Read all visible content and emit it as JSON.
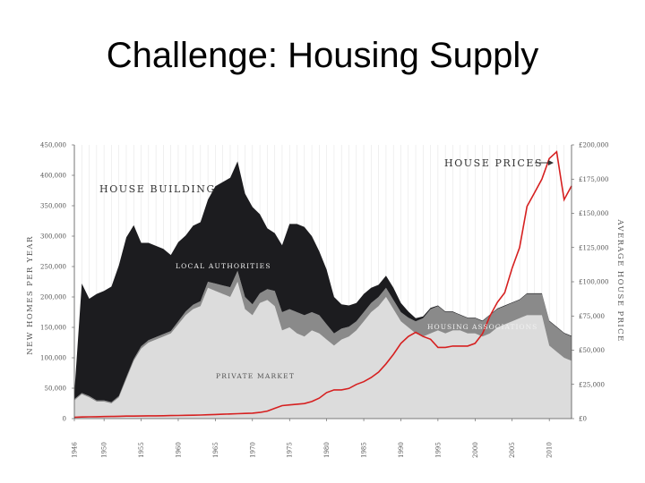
{
  "slide": {
    "title": "Challenge: Housing Supply"
  },
  "chart_data": {
    "type": "area",
    "title": "",
    "left_axis": {
      "label": "NEW HOMES PER YEAR",
      "ticks": [
        0,
        50000,
        100000,
        150000,
        200000,
        250000,
        300000,
        350000,
        400000,
        450000
      ],
      "tick_labels": [
        "0",
        "50,000",
        "100,000",
        "150,000",
        "200,000",
        "250,000",
        "300,000",
        "350,000",
        "400,000",
        "450,000"
      ],
      "ylim": [
        0,
        450000
      ]
    },
    "right_axis": {
      "label": "AVERAGE HOUSE PRICE",
      "ticks": [
        0,
        25000,
        50000,
        75000,
        100000,
        125000,
        150000,
        175000,
        200000
      ],
      "tick_labels": [
        "£0",
        "£25,000",
        "£50,000",
        "£75,000",
        "£100,000",
        "£125,000",
        "£150,000",
        "£175,000",
        "£200,000"
      ],
      "ylim": [
        0,
        200000
      ]
    },
    "x_axis": {
      "ticks": [
        1946,
        1950,
        1955,
        1960,
        1965,
        1970,
        1975,
        1980,
        1985,
        1990,
        1995,
        2000,
        2005,
        2010
      ],
      "tick_labels": [
        "1946",
        "1950",
        "1955",
        "1960",
        "1965",
        "1970",
        "1975",
        "1980",
        "1985",
        "1990",
        "1995",
        "2000",
        "2005",
        "2010"
      ],
      "xlim": [
        1946,
        2013
      ]
    },
    "annotations": {
      "house_building": "HOUSE BUILDING",
      "house_prices": "HOUSE PRICES",
      "local_authorities": "LOCAL AUTHORITIES",
      "housing_associations": "HOUSING ASSOCIATIONS",
      "private_market": "PRIVATE MARKET"
    },
    "colors": {
      "private_market": "#dcdcdc",
      "housing_associations": "#8a8a8a",
      "local_authorities": "#1c1c1f",
      "house_prices": "#d62020"
    },
    "x": [
      1946,
      1947,
      1948,
      1949,
      1950,
      1951,
      1952,
      1953,
      1954,
      1955,
      1956,
      1957,
      1958,
      1959,
      1960,
      1961,
      1962,
      1963,
      1964,
      1965,
      1966,
      1967,
      1968,
      1969,
      1970,
      1971,
      1972,
      1973,
      1974,
      1975,
      1976,
      1977,
      1978,
      1979,
      1980,
      1981,
      1982,
      1983,
      1984,
      1985,
      1986,
      1987,
      1988,
      1989,
      1990,
      1991,
      1992,
      1993,
      1994,
      1995,
      1996,
      1997,
      1998,
      1999,
      2000,
      2001,
      2002,
      2003,
      2004,
      2005,
      2006,
      2007,
      2008,
      2009,
      2010,
      2011,
      2012,
      2013
    ],
    "series": [
      {
        "name": "PRIVATE MARKET",
        "values": [
          30000,
          40000,
          35000,
          28000,
          28000,
          25000,
          35000,
          65000,
          95000,
          115000,
          125000,
          130000,
          135000,
          140000,
          155000,
          170000,
          180000,
          185000,
          215000,
          210000,
          205000,
          200000,
          225000,
          180000,
          170000,
          190000,
          195000,
          185000,
          145000,
          150000,
          140000,
          135000,
          145000,
          140000,
          130000,
          120000,
          130000,
          135000,
          145000,
          160000,
          175000,
          185000,
          200000,
          180000,
          160000,
          150000,
          140000,
          135000,
          140000,
          145000,
          140000,
          145000,
          145000,
          140000,
          140000,
          135000,
          140000,
          150000,
          155000,
          160000,
          165000,
          170000,
          170000,
          170000,
          120000,
          110000,
          100000,
          95000
        ]
      },
      {
        "name": "HOUSING ASSOCIATIONS",
        "values": [
          2000,
          2000,
          2000,
          2000,
          2000,
          2000,
          2000,
          3000,
          3000,
          4000,
          4000,
          4000,
          4000,
          4000,
          5000,
          6000,
          7000,
          8000,
          10000,
          12000,
          14000,
          16000,
          18000,
          20000,
          18000,
          16000,
          18000,
          25000,
          30000,
          30000,
          35000,
          35000,
          30000,
          30000,
          25000,
          20000,
          18000,
          16000,
          15000,
          15000,
          15000,
          15000,
          15000,
          15000,
          15000,
          16000,
          20000,
          30000,
          40000,
          40000,
          35000,
          30000,
          25000,
          25000,
          25000,
          25000,
          30000,
          30000,
          30000,
          30000,
          30000,
          35000,
          35000,
          35000,
          40000,
          40000,
          40000,
          40000
        ]
      },
      {
        "name": "LOCAL AUTHORITIES",
        "values": [
          10000,
          180000,
          160000,
          175000,
          180000,
          190000,
          215000,
          230000,
          220000,
          170000,
          160000,
          150000,
          140000,
          125000,
          130000,
          125000,
          130000,
          130000,
          135000,
          160000,
          170000,
          180000,
          180000,
          170000,
          160000,
          130000,
          100000,
          95000,
          110000,
          140000,
          145000,
          145000,
          125000,
          105000,
          90000,
          60000,
          40000,
          35000,
          30000,
          30000,
          25000,
          20000,
          20000,
          20000,
          15000,
          10000,
          5000,
          3000,
          2000,
          1000,
          1000,
          1000,
          1000,
          1000,
          1000,
          1000,
          1000,
          1000,
          1000,
          1000,
          1000,
          1000,
          1000,
          1000,
          1000,
          1000,
          1000,
          1000
        ]
      },
      {
        "name": "HOUSE PRICES",
        "axis": "right",
        "values": [
          1000,
          1200,
          1300,
          1400,
          1500,
          1600,
          1700,
          1800,
          1800,
          1900,
          2000,
          2000,
          2100,
          2200,
          2300,
          2400,
          2500,
          2600,
          2800,
          3000,
          3200,
          3400,
          3600,
          3800,
          4000,
          4500,
          5500,
          7500,
          9500,
          10000,
          10500,
          11000,
          12500,
          15000,
          19000,
          21000,
          21000,
          22000,
          25000,
          27000,
          30000,
          34000,
          40000,
          47000,
          55000,
          60000,
          63000,
          60000,
          58000,
          52000,
          52000,
          53000,
          53000,
          53000,
          55000,
          62000,
          75000,
          85000,
          92000,
          110000,
          125000,
          155000,
          165000,
          175000,
          190000,
          195000,
          160000,
          170000
        ]
      }
    ],
    "grid": "vertical",
    "legend": "none"
  }
}
